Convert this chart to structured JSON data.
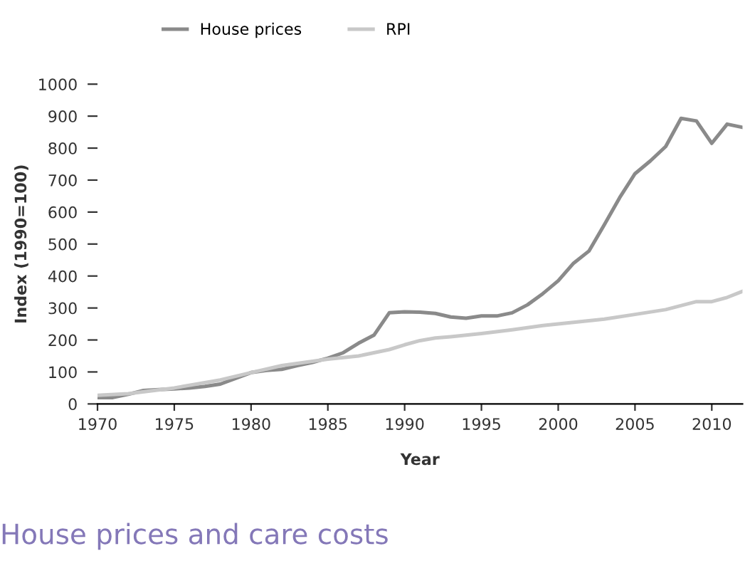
{
  "chart_data": {
    "type": "line",
    "title": "House prices and care costs",
    "xlabel": "Year",
    "ylabel": "Index (1990=100)",
    "series": [
      {
        "name": "House prices",
        "color": "#8a8a8a",
        "x": [
          1970,
          1971,
          1972,
          1973,
          1974,
          1975,
          1976,
          1977,
          1978,
          1979,
          1980,
          1981,
          1982,
          1983,
          1984,
          1985,
          1986,
          1987,
          1988,
          1989,
          1990,
          1991,
          1992,
          1993,
          1994,
          1995,
          1996,
          1997,
          1998,
          1999,
          2000,
          2001,
          2002,
          2003,
          2004,
          2005,
          2006,
          2007,
          2008,
          2009,
          2010,
          2011,
          2012
        ],
        "values": [
          20,
          20,
          30,
          42,
          45,
          47,
          50,
          55,
          62,
          80,
          98,
          105,
          108,
          120,
          130,
          143,
          160,
          190,
          215,
          285,
          288,
          287,
          283,
          272,
          268,
          275,
          275,
          285,
          310,
          345,
          385,
          440,
          478,
          560,
          645,
          720,
          760,
          805,
          893,
          885,
          815,
          875,
          865
        ]
      },
      {
        "name": "RPI",
        "color": "#c8c8c8",
        "x": [
          1970,
          1972,
          1975,
          1978,
          1980,
          1982,
          1985,
          1987,
          1989,
          1990,
          1991,
          1992,
          1993,
          1995,
          1997,
          1999,
          2000,
          2002,
          2003,
          2005,
          2007,
          2009,
          2010,
          2011,
          2012
        ],
        "values": [
          27,
          32,
          50,
          75,
          98,
          120,
          140,
          150,
          170,
          185,
          198,
          206,
          210,
          220,
          232,
          245,
          250,
          260,
          265,
          280,
          295,
          320,
          320,
          333,
          352
        ]
      }
    ],
    "xlim": [
      1970,
      2012
    ],
    "xticks": [
      1970,
      1975,
      1980,
      1985,
      1990,
      1995,
      2000,
      2005,
      2010
    ],
    "ylim": [
      0,
      1000
    ],
    "yticks": [
      0,
      100,
      200,
      300,
      400,
      500,
      600,
      700,
      800,
      900,
      1000
    ],
    "grid": false,
    "legend": "top left",
    "marker": "none",
    "line_style": "solid"
  }
}
